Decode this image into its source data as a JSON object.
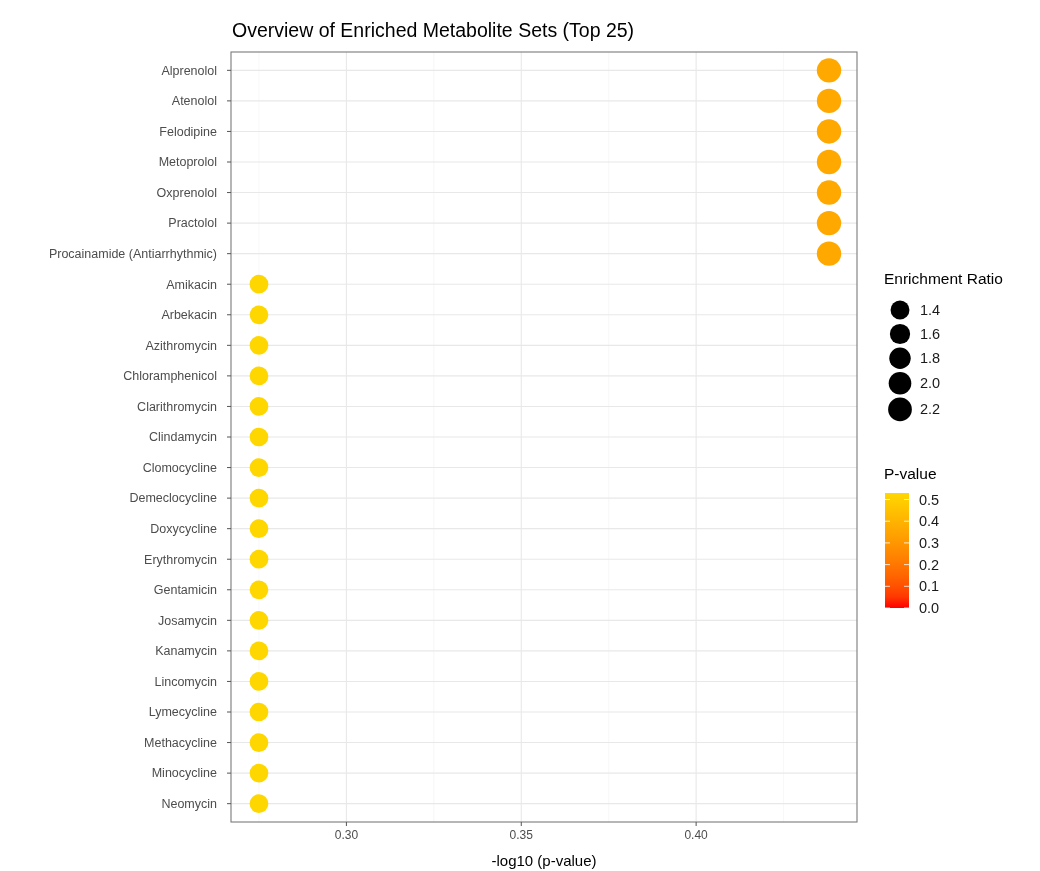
{
  "chart_data": {
    "type": "bubble",
    "title": "Overview of Enriched Metabolite Sets (Top 25)",
    "xlabel": "-log10 (p-value)",
    "legend_title": "Enrichment Ratio",
    "clabel": "P-value",
    "orientation": "horizontal",
    "categories": [
      "Alprenolol",
      "Atenolol",
      "Felodipine",
      "Metoprolol",
      "Oxprenolol",
      "Practolol",
      "Procainamide (Antiarrhythmic)",
      "Amikacin",
      "Arbekacin",
      "Azithromycin",
      "Chloramphenicol",
      "Clarithromycin",
      "Clindamycin",
      "Clomocycline",
      "Demeclocycline",
      "Doxycycline",
      "Erythromycin",
      "Gentamicin",
      "Josamycin",
      "Kanamycin",
      "Lincomycin",
      "Lymecycline",
      "Methacycline",
      "Minocycline",
      "Neomycin"
    ],
    "values": [
      0.438,
      0.438,
      0.438,
      0.438,
      0.438,
      0.438,
      0.438,
      0.275,
      0.275,
      0.275,
      0.275,
      0.275,
      0.275,
      0.275,
      0.275,
      0.275,
      0.275,
      0.275,
      0.275,
      0.275,
      0.275,
      0.275,
      0.275,
      0.275,
      0.275
    ],
    "sizes": [
      2.33,
      2.33,
      2.33,
      2.33,
      2.33,
      2.33,
      2.33,
      1.37,
      1.37,
      1.37,
      1.37,
      1.37,
      1.37,
      1.37,
      1.37,
      1.37,
      1.37,
      1.37,
      1.37,
      1.37,
      1.37,
      1.37,
      1.37,
      1.37,
      1.37
    ],
    "size_legend": [
      1.4,
      1.6,
      1.8,
      {
        "value": 2,
        "label": "2.0"
      },
      2.2
    ],
    "cvalues": [
      0.36,
      0.36,
      0.36,
      0.36,
      0.36,
      0.36,
      0.36,
      0.53,
      0.53,
      0.53,
      0.53,
      0.53,
      0.53,
      0.53,
      0.53,
      0.53,
      0.53,
      0.53,
      0.53,
      0.53,
      0.53,
      0.53,
      0.53,
      0.53,
      0.53
    ],
    "clim": [
      0,
      0.53
    ],
    "cticks": [
      {
        "value": 0,
        "label": "0.0"
      },
      0.1,
      0.2,
      0.3,
      0.4,
      0.5
    ],
    "xlim": [
      0.267,
      0.446
    ],
    "xticks": [
      {
        "value": 0.3,
        "label": "0.30"
      },
      0.35,
      {
        "value": 0.4,
        "label": "0.40"
      }
    ],
    "grid": true
  }
}
